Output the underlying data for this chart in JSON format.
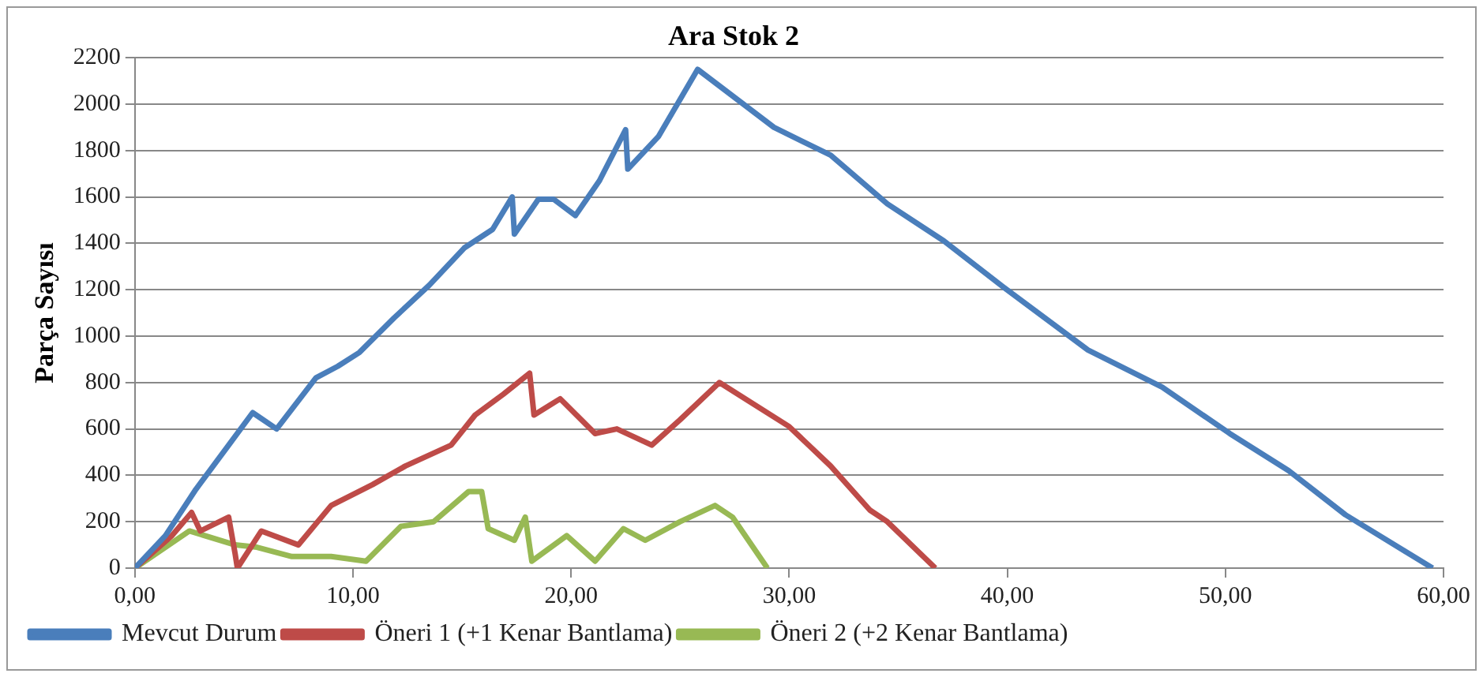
{
  "chart_data": {
    "type": "line",
    "title": "Ara Stok 2",
    "ylabel": "Parça Sayısı",
    "xlim": [
      0,
      60
    ],
    "xticks": [
      {
        "value": 0,
        "label": "0,00"
      },
      {
        "value": 10,
        "label": "10,00"
      },
      {
        "value": 20,
        "label": "20,00"
      },
      {
        "value": 30,
        "label": "30,00"
      },
      {
        "value": 40,
        "label": "40,00"
      },
      {
        "value": 50,
        "label": "50,00"
      },
      {
        "value": 60,
        "label": "60,00"
      }
    ],
    "ylim": [
      0,
      2200
    ],
    "yticks": [
      0,
      200,
      400,
      600,
      800,
      1000,
      1200,
      1400,
      1600,
      1800,
      2000,
      2200
    ],
    "grid": "y",
    "legend": "bottom",
    "marker": "none",
    "line_style": "solid",
    "series": [
      {
        "name": "Mevcut Durum",
        "color": "#4a7ebb",
        "x": [
          0,
          1.4,
          2.8,
          4.3,
          5.4,
          6.5,
          8.3,
          9.3,
          10.3,
          11.9,
          13.5,
          15.1,
          16.4,
          17.3,
          17.4,
          18.5,
          19.2,
          20.2,
          21.3,
          22.5,
          22.6,
          24,
          25.8,
          29.3,
          31.9,
          34.5,
          37.1,
          39.7,
          43.7,
          47.1,
          50.2,
          52.9,
          55.5,
          59.5
        ],
        "values": [
          0,
          140,
          340,
          530,
          670,
          600,
          820,
          870,
          930,
          1080,
          1220,
          1380,
          1460,
          1600,
          1440,
          1590,
          1590,
          1520,
          1670,
          1890,
          1720,
          1860,
          2150,
          1900,
          1780,
          1570,
          1410,
          1220,
          940,
          780,
          580,
          420,
          230,
          0
        ]
      },
      {
        "name": "Öneri 1 (+1 Kenar Bantlama)",
        "color": "#be4b48",
        "x": [
          0,
          1.7,
          2.6,
          3,
          4.3,
          4.6,
          4.7,
          5.8,
          7.5,
          9,
          10.9,
          12.4,
          14.5,
          15.6,
          16.9,
          18.1,
          18.3,
          19.5,
          21.1,
          22.1,
          23.7,
          25,
          26.8,
          30,
          31.9,
          33.7,
          34.5,
          36.7
        ],
        "values": [
          0,
          140,
          240,
          160,
          220,
          60,
          0,
          160,
          100,
          270,
          360,
          440,
          530,
          660,
          750,
          840,
          660,
          730,
          580,
          600,
          530,
          640,
          800,
          610,
          440,
          250,
          200,
          0
        ]
      },
      {
        "name": "Öneri 2 (+2 Kenar Bantlama)",
        "color": "#98b954",
        "x": [
          0,
          2.5,
          4.6,
          5.6,
          7.2,
          9,
          10.6,
          12.2,
          13.7,
          15.3,
          15.9,
          16.2,
          17.4,
          17.9,
          18.2,
          19.8,
          21.1,
          22.4,
          23.4,
          25,
          26.6,
          27.4,
          29
        ],
        "values": [
          0,
          160,
          100,
          90,
          50,
          50,
          30,
          180,
          200,
          330,
          330,
          170,
          120,
          220,
          30,
          140,
          30,
          170,
          120,
          200,
          270,
          220,
          0
        ]
      }
    ]
  }
}
